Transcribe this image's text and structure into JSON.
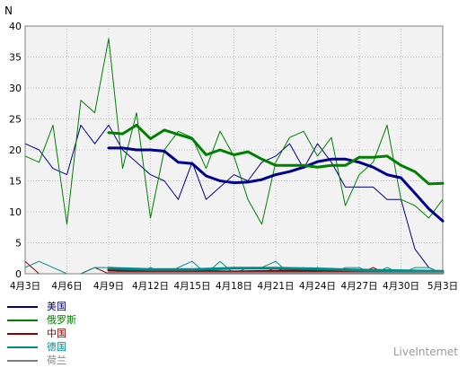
{
  "chart_data": {
    "type": "line",
    "ylabel": "N",
    "ylim": [
      0,
      40
    ],
    "yticks": [
      0,
      5,
      10,
      15,
      20,
      25,
      30,
      35,
      40
    ],
    "x_range": [
      0,
      30
    ],
    "xticks": [
      {
        "x": 0,
        "label": "4月3日"
      },
      {
        "x": 3,
        "label": "4月6日"
      },
      {
        "x": 6,
        "label": "4月9日"
      },
      {
        "x": 9,
        "label": "4月12日"
      },
      {
        "x": 12,
        "label": "4月15日"
      },
      {
        "x": 15,
        "label": "4月18日"
      },
      {
        "x": 18,
        "label": "4月21日"
      },
      {
        "x": 21,
        "label": "4月24日"
      },
      {
        "x": 24,
        "label": "4月27日"
      },
      {
        "x": 27,
        "label": "4月30日"
      },
      {
        "x": 30,
        "label": "5月3日"
      }
    ],
    "series": [
      {
        "name": "美国",
        "color": "#00008b",
        "daily": [
          [
            0,
            21
          ],
          [
            1,
            20
          ],
          [
            2,
            17
          ],
          [
            3,
            16
          ],
          [
            4,
            24
          ],
          [
            5,
            21
          ],
          [
            6,
            24
          ],
          [
            7,
            20
          ],
          [
            8,
            18
          ],
          [
            9,
            16
          ],
          [
            10,
            15
          ],
          [
            11,
            12
          ],
          [
            12,
            18
          ],
          [
            13,
            12
          ],
          [
            14,
            14
          ],
          [
            15,
            16
          ],
          [
            16,
            15
          ],
          [
            17,
            18
          ],
          [
            18,
            19
          ],
          [
            19,
            21
          ],
          [
            20,
            17
          ],
          [
            21,
            21
          ],
          [
            22,
            18
          ],
          [
            23,
            14
          ],
          [
            24,
            14
          ],
          [
            25,
            14
          ],
          [
            26,
            12
          ],
          [
            26.5,
            12
          ],
          [
            27,
            12
          ],
          [
            28,
            4
          ],
          [
            29,
            1
          ],
          [
            30,
            0
          ]
        ],
        "avg": [
          [
            6,
            20.3
          ],
          [
            7,
            20.3
          ],
          [
            8,
            20
          ],
          [
            9,
            20
          ],
          [
            10,
            19.8
          ],
          [
            11,
            18
          ],
          [
            12,
            17.8
          ],
          [
            13,
            15.8
          ],
          [
            14,
            15
          ],
          [
            15,
            14.7
          ],
          [
            16,
            14.8
          ],
          [
            17,
            15.2
          ],
          [
            18,
            16
          ],
          [
            19,
            16.5
          ],
          [
            20,
            17.2
          ],
          [
            21,
            18.1
          ],
          [
            22,
            18.5
          ],
          [
            23,
            18.5
          ],
          [
            24,
            18
          ],
          [
            25,
            17.2
          ],
          [
            26,
            16
          ],
          [
            27,
            15.5
          ],
          [
            28,
            13
          ],
          [
            29,
            10.5
          ],
          [
            30,
            8.5
          ]
        ]
      },
      {
        "name": "俄罗斯",
        "color": "#008000",
        "daily": [
          [
            0,
            19
          ],
          [
            1,
            18
          ],
          [
            2,
            24
          ],
          [
            3,
            8
          ],
          [
            4,
            28
          ],
          [
            5,
            26
          ],
          [
            6,
            38
          ],
          [
            7,
            17
          ],
          [
            8,
            26
          ],
          [
            9,
            9
          ],
          [
            10,
            20
          ],
          [
            11,
            23
          ],
          [
            12,
            22
          ],
          [
            13,
            17
          ],
          [
            14,
            23
          ],
          [
            15,
            19
          ],
          [
            16,
            12
          ],
          [
            17,
            8
          ],
          [
            18,
            18
          ],
          [
            19,
            22
          ],
          [
            20,
            23
          ],
          [
            21,
            19
          ],
          [
            22,
            22
          ],
          [
            23,
            11
          ],
          [
            24,
            16
          ],
          [
            25,
            18
          ],
          [
            26,
            24
          ],
          [
            27,
            12
          ],
          [
            28,
            11
          ],
          [
            29,
            9
          ],
          [
            30,
            12
          ]
        ],
        "avg": [
          [
            6,
            22.8
          ],
          [
            7,
            22.6
          ],
          [
            8,
            24
          ],
          [
            9,
            21.8
          ],
          [
            10,
            23.2
          ],
          [
            11,
            22.5
          ],
          [
            12,
            21.8
          ],
          [
            13,
            19.2
          ],
          [
            14,
            20
          ],
          [
            15,
            19.2
          ],
          [
            16,
            19.7
          ],
          [
            17,
            18.5
          ],
          [
            18,
            17.5
          ],
          [
            19,
            17.5
          ],
          [
            20,
            17.5
          ],
          [
            21,
            17.2
          ],
          [
            22,
            17.5
          ],
          [
            23,
            17.5
          ],
          [
            24,
            18.8
          ],
          [
            25,
            18.8
          ],
          [
            26,
            19
          ],
          [
            27,
            17.5
          ],
          [
            28,
            16.5
          ],
          [
            29,
            14.5
          ],
          [
            30,
            14.6
          ]
        ]
      },
      {
        "name": "中国",
        "color": "#8b0000",
        "daily": [
          [
            0,
            2
          ],
          [
            1,
            0
          ],
          [
            2,
            0
          ],
          [
            3,
            0
          ],
          [
            4,
            0
          ],
          [
            5,
            1
          ],
          [
            6,
            0
          ],
          [
            7,
            0
          ],
          [
            8,
            0
          ],
          [
            9,
            0
          ],
          [
            10,
            0
          ],
          [
            11,
            0
          ],
          [
            12,
            0
          ],
          [
            13,
            0
          ],
          [
            14,
            0
          ],
          [
            15,
            0
          ],
          [
            16,
            0
          ],
          [
            17,
            0
          ],
          [
            18,
            1
          ],
          [
            19,
            0
          ],
          [
            20,
            0
          ],
          [
            21,
            1
          ],
          [
            22,
            0
          ],
          [
            23,
            0
          ],
          [
            24,
            0
          ],
          [
            25,
            1
          ],
          [
            26,
            0
          ],
          [
            27,
            0
          ],
          [
            28,
            0
          ],
          [
            29,
            0
          ],
          [
            30,
            0
          ]
        ],
        "avg": [
          [
            6,
            0.6
          ],
          [
            9,
            0.4
          ],
          [
            12,
            0.4
          ],
          [
            15,
            0.3
          ],
          [
            18,
            0.4
          ],
          [
            21,
            0.5
          ],
          [
            24,
            0.5
          ],
          [
            27,
            0.3
          ],
          [
            30,
            0.2
          ]
        ]
      },
      {
        "name": "德国",
        "color": "#008b8b",
        "daily": [
          [
            0,
            1
          ],
          [
            1,
            2
          ],
          [
            2,
            1
          ],
          [
            3,
            0
          ],
          [
            4,
            0
          ],
          [
            5,
            1
          ],
          [
            6,
            1
          ],
          [
            7,
            0
          ],
          [
            8,
            0
          ],
          [
            9,
            1
          ],
          [
            10,
            0
          ],
          [
            11,
            1
          ],
          [
            12,
            2
          ],
          [
            13,
            0
          ],
          [
            14,
            2
          ],
          [
            15,
            0
          ],
          [
            16,
            1
          ],
          [
            17,
            1
          ],
          [
            18,
            2
          ],
          [
            19,
            0
          ],
          [
            20,
            1
          ],
          [
            21,
            0
          ],
          [
            22,
            0
          ],
          [
            23,
            1
          ],
          [
            24,
            1
          ],
          [
            25,
            0
          ],
          [
            26,
            1
          ],
          [
            27,
            0
          ],
          [
            28,
            1
          ],
          [
            29,
            1
          ],
          [
            30,
            0
          ]
        ],
        "avg": [
          [
            6,
            0.9
          ],
          [
            9,
            0.7
          ],
          [
            12,
            0.7
          ],
          [
            15,
            0.9
          ],
          [
            18,
            0.9
          ],
          [
            21,
            0.8
          ],
          [
            24,
            0.6
          ],
          [
            27,
            0.5
          ],
          [
            30,
            0.4
          ]
        ]
      },
      {
        "name": "荷兰",
        "color": "#808080",
        "daily": [
          [
            0,
            0
          ],
          [
            1,
            0
          ],
          [
            2,
            0
          ],
          [
            3,
            0
          ],
          [
            4,
            0
          ],
          [
            5,
            0
          ],
          [
            6,
            0
          ],
          [
            7,
            0
          ],
          [
            8,
            0
          ],
          [
            9,
            0
          ],
          [
            10,
            0
          ],
          [
            11,
            0
          ],
          [
            12,
            0
          ],
          [
            13,
            0
          ],
          [
            14,
            0
          ],
          [
            15,
            0
          ],
          [
            16,
            0
          ],
          [
            17,
            0
          ],
          [
            18,
            0
          ],
          [
            19,
            0
          ],
          [
            20,
            0
          ],
          [
            21,
            0
          ],
          [
            22,
            0
          ],
          [
            23,
            0
          ],
          [
            24,
            0
          ],
          [
            25,
            0
          ],
          [
            26,
            0
          ],
          [
            27,
            0
          ],
          [
            28,
            0
          ],
          [
            29,
            0
          ],
          [
            30,
            0
          ]
        ],
        "avg": [
          [
            6,
            0.1
          ],
          [
            30,
            0.1
          ]
        ]
      }
    ],
    "grid": true,
    "legend_position": "bottom-left",
    "source": "LiveInternet"
  }
}
